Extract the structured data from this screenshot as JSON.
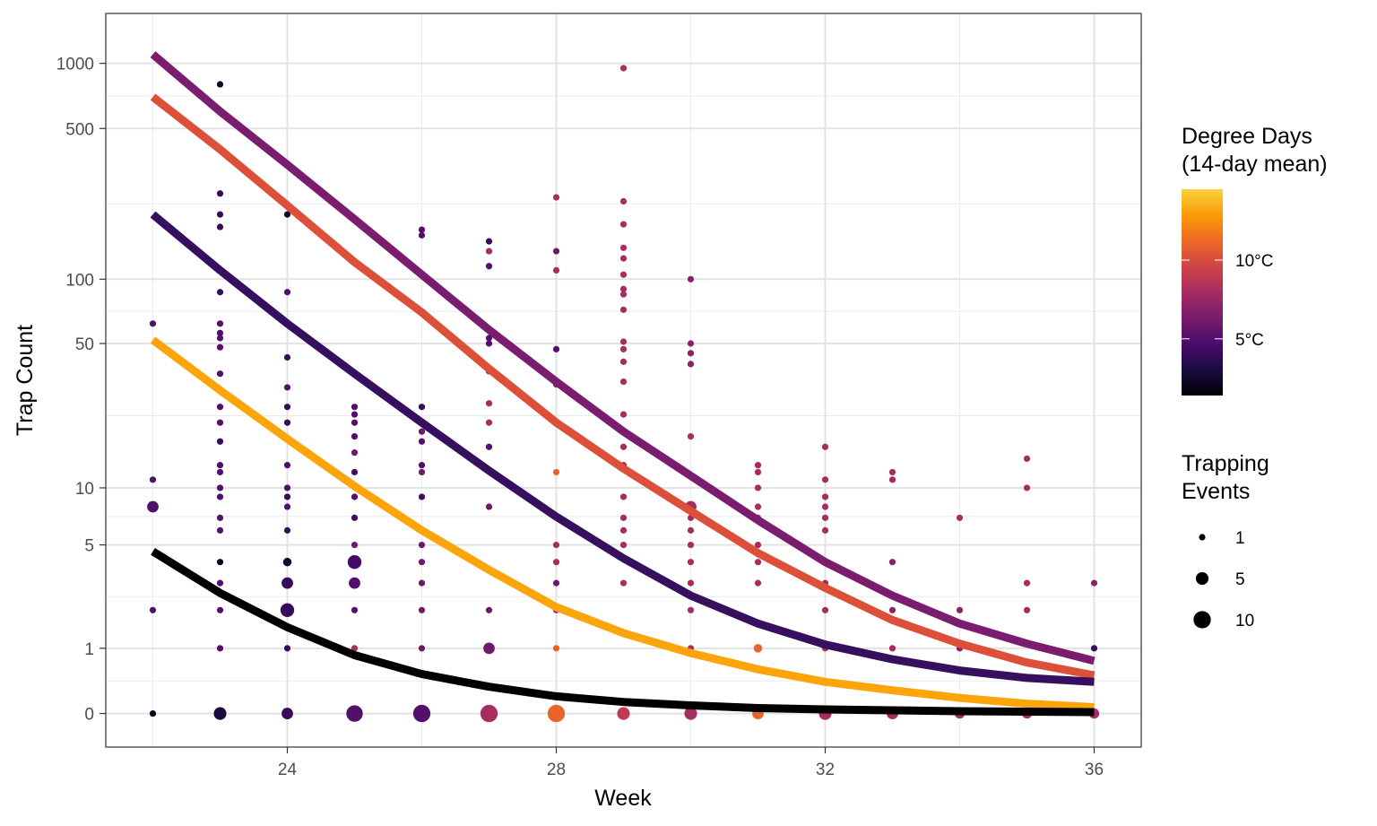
{
  "chart_data": {
    "type": "scatter",
    "xlabel": "Week",
    "ylabel": "Trap Count",
    "y_scale": "log1p",
    "xlim": [
      21.3,
      36.7
    ],
    "ylim": [
      -0.3,
      1700
    ],
    "x_ticks": [
      24,
      28,
      32,
      36
    ],
    "x_tick_labels": [
      "24",
      "28",
      "32",
      "36"
    ],
    "y_ticks": [
      0,
      1,
      5,
      10,
      50,
      100,
      500,
      1000
    ],
    "y_tick_labels": [
      "0",
      "1",
      "5",
      "10",
      "50",
      "100",
      "500",
      "1000"
    ],
    "grid": true,
    "legend_position": "right",
    "color_legend": {
      "title_lines": [
        "Degree Days",
        "(14-day mean)"
      ],
      "range": [
        1.4,
        14.5
      ],
      "tick_values": [
        5,
        10
      ],
      "tick_labels": [
        "5°C",
        "10°C"
      ],
      "colors": [
        "#000004",
        "#1b0c41",
        "#4a0c6b",
        "#781c6d",
        "#a52c60",
        "#cf4446",
        "#ed6925",
        "#fb9b06",
        "#f7d13d"
      ]
    },
    "size_legend": {
      "title_lines": [
        "Trapping",
        "Events"
      ],
      "values": [
        1,
        5,
        10
      ],
      "labels": [
        "1",
        "5",
        "10"
      ]
    },
    "lines": [
      {
        "degree_days": 7.5,
        "color": "#7b1d6e",
        "x": [
          22,
          23,
          24,
          25,
          26,
          27,
          28,
          29,
          30,
          31,
          32,
          33,
          34,
          35,
          36
        ],
        "y": [
          1100,
          600,
          340,
          190,
          105,
          58,
          33,
          19,
          11.5,
          6.8,
          4.0,
          2.5,
          1.6,
          1.1,
          0.75
        ]
      },
      {
        "degree_days": 11,
        "color": "#dc5039",
        "x": [
          22,
          23,
          24,
          25,
          26,
          27,
          28,
          29,
          30,
          31,
          32,
          33,
          34,
          35,
          36
        ],
        "y": [
          700,
          400,
          220,
          120,
          70,
          38,
          21,
          12.5,
          7.6,
          4.5,
          2.8,
          1.7,
          1.1,
          0.72,
          0.5
        ]
      },
      {
        "degree_days": 4.5,
        "color": "#36105f",
        "x": [
          22,
          23,
          24,
          25,
          26,
          27,
          28,
          29,
          30,
          31,
          32,
          33,
          34,
          35,
          36
        ],
        "y": [
          200,
          110,
          62,
          36,
          21,
          12.2,
          7.1,
          4.2,
          2.5,
          1.6,
          1.08,
          0.78,
          0.58,
          0.46,
          0.4
        ]
      },
      {
        "degree_days": 14,
        "color": "#fca50a",
        "x": [
          22,
          23,
          24,
          25,
          26,
          27,
          28,
          29,
          30,
          31,
          32,
          33,
          34,
          35,
          36
        ],
        "y": [
          52,
          30,
          17.5,
          10.2,
          6,
          3.6,
          2.1,
          1.35,
          0.9,
          0.6,
          0.4,
          0.28,
          0.18,
          0.11,
          0.07
        ]
      },
      {
        "degree_days": 1.5,
        "color": "#000000",
        "x": [
          22,
          23,
          24,
          25,
          26,
          27,
          28,
          29,
          30,
          31,
          32,
          33,
          34,
          35,
          36
        ],
        "y": [
          4.6,
          2.6,
          1.5,
          0.86,
          0.52,
          0.33,
          0.2,
          0.13,
          0.09,
          0.06,
          0.045,
          0.035,
          0.025,
          0.02,
          0.015
        ]
      }
    ],
    "points": [
      {
        "x": 22,
        "y": 62,
        "dd": 5,
        "n": 1
      },
      {
        "x": 22,
        "y": 11,
        "dd": 5,
        "n": 1
      },
      {
        "x": 22,
        "y": 8,
        "dd": 5,
        "n": 4
      },
      {
        "x": 22,
        "y": 2,
        "dd": 5,
        "n": 1
      },
      {
        "x": 22,
        "y": 0,
        "dd": 2,
        "n": 1
      },
      {
        "x": 23,
        "y": 800,
        "dd": 2.5,
        "n": 1
      },
      {
        "x": 23,
        "y": 250,
        "dd": 4,
        "n": 1
      },
      {
        "x": 23,
        "y": 200,
        "dd": 4,
        "n": 1
      },
      {
        "x": 23,
        "y": 175,
        "dd": 4,
        "n": 1
      },
      {
        "x": 23,
        "y": 87,
        "dd": 4,
        "n": 1
      },
      {
        "x": 23,
        "y": 62,
        "dd": 5,
        "n": 1
      },
      {
        "x": 23,
        "y": 56,
        "dd": 5,
        "n": 1
      },
      {
        "x": 23,
        "y": 53,
        "dd": 5,
        "n": 1
      },
      {
        "x": 23,
        "y": 48,
        "dd": 5,
        "n": 1
      },
      {
        "x": 23,
        "y": 36,
        "dd": 5,
        "n": 1
      },
      {
        "x": 23,
        "y": 25,
        "dd": 5,
        "n": 1
      },
      {
        "x": 23,
        "y": 21,
        "dd": 5,
        "n": 1
      },
      {
        "x": 23,
        "y": 17,
        "dd": 4,
        "n": 1
      },
      {
        "x": 23,
        "y": 13,
        "dd": 5,
        "n": 1
      },
      {
        "x": 23,
        "y": 12,
        "dd": 5,
        "n": 1
      },
      {
        "x": 23,
        "y": 10,
        "dd": 5,
        "n": 1
      },
      {
        "x": 23,
        "y": 9,
        "dd": 5,
        "n": 1
      },
      {
        "x": 23,
        "y": 7,
        "dd": 5,
        "n": 1
      },
      {
        "x": 23,
        "y": 6,
        "dd": 5,
        "n": 1
      },
      {
        "x": 23,
        "y": 4,
        "dd": 2,
        "n": 1
      },
      {
        "x": 23,
        "y": 3,
        "dd": 5,
        "n": 1
      },
      {
        "x": 23,
        "y": 2,
        "dd": 5,
        "n": 1
      },
      {
        "x": 23,
        "y": 1,
        "dd": 5,
        "n": 1
      },
      {
        "x": 23,
        "y": 0,
        "dd": 3,
        "n": 5
      },
      {
        "x": 24,
        "y": 200,
        "dd": 2.5,
        "n": 1
      },
      {
        "x": 24,
        "y": 87,
        "dd": 5,
        "n": 1
      },
      {
        "x": 24,
        "y": 43,
        "dd": 4,
        "n": 1
      },
      {
        "x": 24,
        "y": 31,
        "dd": 5,
        "n": 1
      },
      {
        "x": 24,
        "y": 25,
        "dd": 4,
        "n": 1
      },
      {
        "x": 24,
        "y": 21,
        "dd": 4,
        "n": 1
      },
      {
        "x": 24,
        "y": 13,
        "dd": 5,
        "n": 1
      },
      {
        "x": 24,
        "y": 10,
        "dd": 5,
        "n": 1
      },
      {
        "x": 24,
        "y": 9,
        "dd": 4,
        "n": 1
      },
      {
        "x": 24,
        "y": 8,
        "dd": 5,
        "n": 1
      },
      {
        "x": 24,
        "y": 6,
        "dd": 4,
        "n": 1
      },
      {
        "x": 24,
        "y": 4,
        "dd": 2.5,
        "n": 2
      },
      {
        "x": 24,
        "y": 3,
        "dd": 4,
        "n": 4
      },
      {
        "x": 24,
        "y": 2,
        "dd": 4,
        "n": 6
      },
      {
        "x": 24,
        "y": 1,
        "dd": 4,
        "n": 1
      },
      {
        "x": 24,
        "y": 0,
        "dd": 4,
        "n": 4
      },
      {
        "x": 25,
        "y": 25,
        "dd": 5,
        "n": 1
      },
      {
        "x": 25,
        "y": 23,
        "dd": 5,
        "n": 1
      },
      {
        "x": 25,
        "y": 21,
        "dd": 5,
        "n": 1
      },
      {
        "x": 25,
        "y": 18,
        "dd": 5,
        "n": 1
      },
      {
        "x": 25,
        "y": 15,
        "dd": 6,
        "n": 1
      },
      {
        "x": 25,
        "y": 12,
        "dd": 4.5,
        "n": 1
      },
      {
        "x": 25,
        "y": 9,
        "dd": 5,
        "n": 1
      },
      {
        "x": 25,
        "y": 7,
        "dd": 4.5,
        "n": 1
      },
      {
        "x": 25,
        "y": 5,
        "dd": 6,
        "n": 1
      },
      {
        "x": 25,
        "y": 4,
        "dd": 4.5,
        "n": 6
      },
      {
        "x": 25,
        "y": 3,
        "dd": 5,
        "n": 4
      },
      {
        "x": 25,
        "y": 2,
        "dd": 5,
        "n": 1
      },
      {
        "x": 25,
        "y": 1,
        "dd": 8,
        "n": 1
      },
      {
        "x": 25,
        "y": 0,
        "dd": 5,
        "n": 9
      },
      {
        "x": 26,
        "y": 170,
        "dd": 5,
        "n": 1
      },
      {
        "x": 26,
        "y": 160,
        "dd": 5,
        "n": 1
      },
      {
        "x": 26,
        "y": 25,
        "dd": 4,
        "n": 1
      },
      {
        "x": 26,
        "y": 21,
        "dd": 5,
        "n": 1
      },
      {
        "x": 26,
        "y": 19,
        "dd": 6,
        "n": 1
      },
      {
        "x": 26,
        "y": 17,
        "dd": 5,
        "n": 1
      },
      {
        "x": 26,
        "y": 13,
        "dd": 5,
        "n": 1
      },
      {
        "x": 26,
        "y": 12,
        "dd": 6,
        "n": 1
      },
      {
        "x": 26,
        "y": 9,
        "dd": 4.5,
        "n": 1
      },
      {
        "x": 26,
        "y": 6,
        "dd": 4.5,
        "n": 1
      },
      {
        "x": 26,
        "y": 5,
        "dd": 6,
        "n": 1
      },
      {
        "x": 26,
        "y": 4,
        "dd": 6,
        "n": 1
      },
      {
        "x": 26,
        "y": 3,
        "dd": 6,
        "n": 1
      },
      {
        "x": 26,
        "y": 2,
        "dd": 6,
        "n": 1
      },
      {
        "x": 26,
        "y": 1,
        "dd": 6,
        "n": 1
      },
      {
        "x": 26,
        "y": 0,
        "dd": 5,
        "n": 10
      },
      {
        "x": 27,
        "y": 150,
        "dd": 4,
        "n": 1
      },
      {
        "x": 27,
        "y": 135,
        "dd": 8,
        "n": 1
      },
      {
        "x": 27,
        "y": 115,
        "dd": 5,
        "n": 1
      },
      {
        "x": 27,
        "y": 53,
        "dd": 5,
        "n": 1
      },
      {
        "x": 27,
        "y": 50,
        "dd": 5,
        "n": 1
      },
      {
        "x": 27,
        "y": 37,
        "dd": 6,
        "n": 1
      },
      {
        "x": 27,
        "y": 26,
        "dd": 8,
        "n": 1
      },
      {
        "x": 27,
        "y": 21,
        "dd": 8,
        "n": 1
      },
      {
        "x": 27,
        "y": 16,
        "dd": 5,
        "n": 1
      },
      {
        "x": 27,
        "y": 8,
        "dd": 6,
        "n": 1
      },
      {
        "x": 27,
        "y": 2,
        "dd": 6,
        "n": 1
      },
      {
        "x": 27,
        "y": 1,
        "dd": 6,
        "n": 4
      },
      {
        "x": 27,
        "y": 0,
        "dd": 8,
        "n": 10
      },
      {
        "x": 28,
        "y": 240,
        "dd": 8,
        "n": 1
      },
      {
        "x": 28,
        "y": 135,
        "dd": 6,
        "n": 1
      },
      {
        "x": 28,
        "y": 110,
        "dd": 8,
        "n": 1
      },
      {
        "x": 28,
        "y": 47,
        "dd": 5,
        "n": 1
      },
      {
        "x": 28,
        "y": 32,
        "dd": 7,
        "n": 1
      },
      {
        "x": 28,
        "y": 12,
        "dd": 11,
        "n": 1
      },
      {
        "x": 28,
        "y": 5,
        "dd": 8,
        "n": 1
      },
      {
        "x": 28,
        "y": 4,
        "dd": 8,
        "n": 1
      },
      {
        "x": 28,
        "y": 3,
        "dd": 6,
        "n": 1
      },
      {
        "x": 28,
        "y": 2,
        "dd": 8,
        "n": 1
      },
      {
        "x": 28,
        "y": 1,
        "dd": 11,
        "n": 1
      },
      {
        "x": 28,
        "y": 0,
        "dd": 11,
        "n": 10
      },
      {
        "x": 29,
        "y": 950,
        "dd": 8,
        "n": 1
      },
      {
        "x": 29,
        "y": 230,
        "dd": 8,
        "n": 1
      },
      {
        "x": 29,
        "y": 180,
        "dd": 8,
        "n": 1
      },
      {
        "x": 29,
        "y": 140,
        "dd": 8,
        "n": 1
      },
      {
        "x": 29,
        "y": 125,
        "dd": 8,
        "n": 1
      },
      {
        "x": 29,
        "y": 105,
        "dd": 8,
        "n": 1
      },
      {
        "x": 29,
        "y": 90,
        "dd": 8,
        "n": 1
      },
      {
        "x": 29,
        "y": 85,
        "dd": 8,
        "n": 1
      },
      {
        "x": 29,
        "y": 72,
        "dd": 8,
        "n": 1
      },
      {
        "x": 29,
        "y": 51,
        "dd": 8,
        "n": 1
      },
      {
        "x": 29,
        "y": 47,
        "dd": 8,
        "n": 1
      },
      {
        "x": 29,
        "y": 41,
        "dd": 8,
        "n": 1
      },
      {
        "x": 29,
        "y": 33,
        "dd": 8,
        "n": 1
      },
      {
        "x": 29,
        "y": 23,
        "dd": 8,
        "n": 1
      },
      {
        "x": 29,
        "y": 16,
        "dd": 8,
        "n": 1
      },
      {
        "x": 29,
        "y": 13,
        "dd": 8,
        "n": 1
      },
      {
        "x": 29,
        "y": 9,
        "dd": 8,
        "n": 1
      },
      {
        "x": 29,
        "y": 7,
        "dd": 8,
        "n": 1
      },
      {
        "x": 29,
        "y": 6,
        "dd": 8,
        "n": 1
      },
      {
        "x": 29,
        "y": 5,
        "dd": 8,
        "n": 1
      },
      {
        "x": 29,
        "y": 3,
        "dd": 8,
        "n": 1
      },
      {
        "x": 29,
        "y": 0,
        "dd": 9,
        "n": 5
      },
      {
        "x": 30,
        "y": 100,
        "dd": 7,
        "n": 1
      },
      {
        "x": 30,
        "y": 50,
        "dd": 7,
        "n": 1
      },
      {
        "x": 30,
        "y": 45,
        "dd": 7,
        "n": 1
      },
      {
        "x": 30,
        "y": 40,
        "dd": 7,
        "n": 1
      },
      {
        "x": 30,
        "y": 18,
        "dd": 8,
        "n": 1
      },
      {
        "x": 30,
        "y": 8,
        "dd": 8,
        "n": 4
      },
      {
        "x": 30,
        "y": 7,
        "dd": 8,
        "n": 1
      },
      {
        "x": 30,
        "y": 6,
        "dd": 8,
        "n": 1
      },
      {
        "x": 30,
        "y": 5,
        "dd": 8,
        "n": 1
      },
      {
        "x": 30,
        "y": 4,
        "dd": 8,
        "n": 1
      },
      {
        "x": 30,
        "y": 3,
        "dd": 8,
        "n": 1
      },
      {
        "x": 30,
        "y": 2,
        "dd": 8,
        "n": 1
      },
      {
        "x": 30,
        "y": 1,
        "dd": 8,
        "n": 1
      },
      {
        "x": 30,
        "y": 0,
        "dd": 8,
        "n": 5
      },
      {
        "x": 31,
        "y": 13,
        "dd": 8,
        "n": 1
      },
      {
        "x": 31,
        "y": 12,
        "dd": 8,
        "n": 1
      },
      {
        "x": 31,
        "y": 10,
        "dd": 8,
        "n": 1
      },
      {
        "x": 31,
        "y": 8,
        "dd": 8,
        "n": 1
      },
      {
        "x": 31,
        "y": 7,
        "dd": 8,
        "n": 1
      },
      {
        "x": 31,
        "y": 5,
        "dd": 8,
        "n": 1
      },
      {
        "x": 31,
        "y": 4,
        "dd": 8,
        "n": 1
      },
      {
        "x": 31,
        "y": 3,
        "dd": 8,
        "n": 1
      },
      {
        "x": 31,
        "y": 1,
        "dd": 11,
        "n": 2
      },
      {
        "x": 31,
        "y": 0,
        "dd": 11,
        "n": 4
      },
      {
        "x": 32,
        "y": 16,
        "dd": 8,
        "n": 1
      },
      {
        "x": 32,
        "y": 11,
        "dd": 8,
        "n": 1
      },
      {
        "x": 32,
        "y": 9,
        "dd": 8,
        "n": 1
      },
      {
        "x": 32,
        "y": 8,
        "dd": 8,
        "n": 1
      },
      {
        "x": 32,
        "y": 7,
        "dd": 8,
        "n": 1
      },
      {
        "x": 32,
        "y": 6,
        "dd": 8,
        "n": 1
      },
      {
        "x": 32,
        "y": 4,
        "dd": 8,
        "n": 1
      },
      {
        "x": 32,
        "y": 3,
        "dd": 8,
        "n": 1
      },
      {
        "x": 32,
        "y": 2,
        "dd": 8,
        "n": 1
      },
      {
        "x": 32,
        "y": 1,
        "dd": 8,
        "n": 1
      },
      {
        "x": 32,
        "y": 0,
        "dd": 8,
        "n": 5
      },
      {
        "x": 33,
        "y": 12,
        "dd": 8,
        "n": 1
      },
      {
        "x": 33,
        "y": 11,
        "dd": 8,
        "n": 1
      },
      {
        "x": 33,
        "y": 4,
        "dd": 7,
        "n": 1
      },
      {
        "x": 33,
        "y": 2,
        "dd": 7,
        "n": 1
      },
      {
        "x": 33,
        "y": 1,
        "dd": 8,
        "n": 1
      },
      {
        "x": 33,
        "y": 0,
        "dd": 8,
        "n": 4
      },
      {
        "x": 34,
        "y": 7,
        "dd": 8,
        "n": 1
      },
      {
        "x": 34,
        "y": 2,
        "dd": 7,
        "n": 1
      },
      {
        "x": 34,
        "y": 1,
        "dd": 7,
        "n": 1
      },
      {
        "x": 34,
        "y": 0,
        "dd": 8,
        "n": 3
      },
      {
        "x": 35,
        "y": 14,
        "dd": 8,
        "n": 1
      },
      {
        "x": 35,
        "y": 10,
        "dd": 8,
        "n": 1
      },
      {
        "x": 35,
        "y": 3,
        "dd": 8,
        "n": 1
      },
      {
        "x": 35,
        "y": 2,
        "dd": 8,
        "n": 1
      },
      {
        "x": 35,
        "y": 0,
        "dd": 8,
        "n": 3
      },
      {
        "x": 36,
        "y": 3,
        "dd": 7,
        "n": 1
      },
      {
        "x": 36,
        "y": 1,
        "dd": 4,
        "n": 1
      },
      {
        "x": 36,
        "y": 0,
        "dd": 8,
        "n": 3
      }
    ]
  }
}
